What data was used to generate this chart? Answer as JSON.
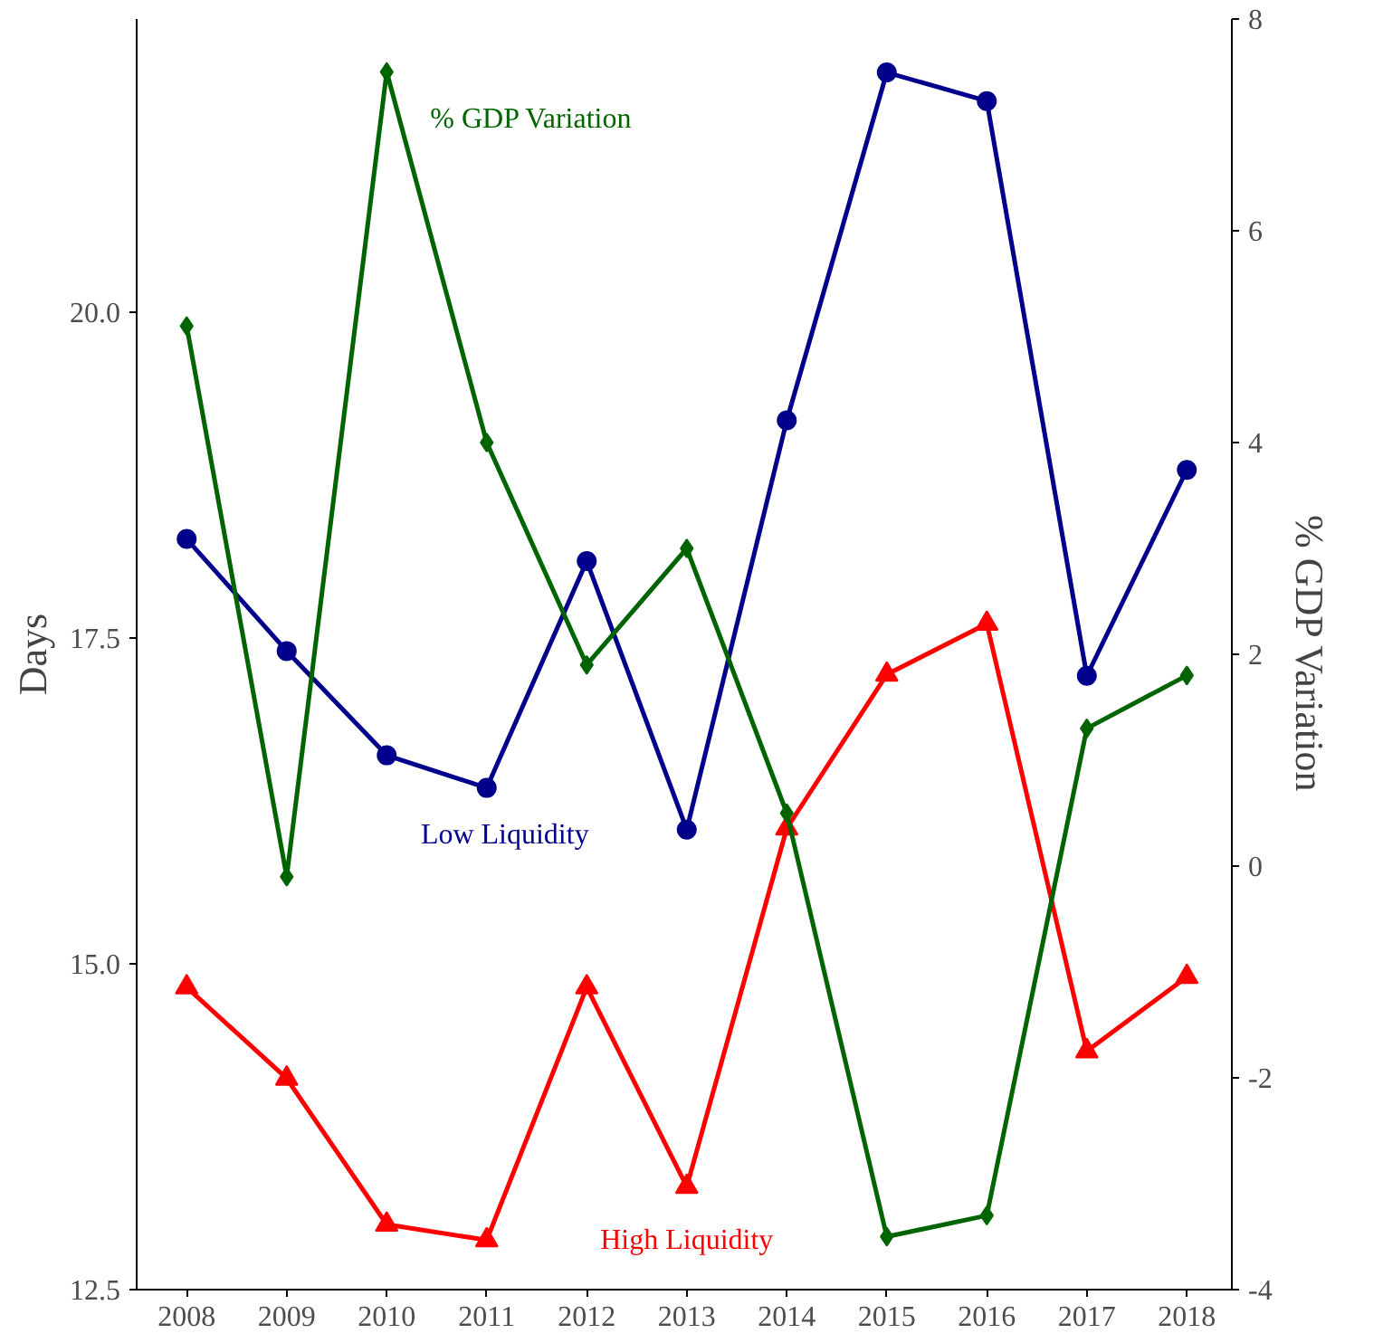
{
  "chart_data": {
    "type": "line",
    "ylabel": "Days",
    "y2label": "% GDP Variation",
    "x": [
      2008,
      2009,
      2010,
      2011,
      2012,
      2013,
      2014,
      2015,
      2016,
      2017,
      2018
    ],
    "xlim": [
      2007.5,
      2018.45
    ],
    "xticks": [
      2008,
      2009,
      2010,
      2011,
      2012,
      2013,
      2014,
      2015,
      2016,
      2017,
      2018
    ],
    "ylim": [
      12.5,
      22.25
    ],
    "yticks": [
      {
        "value": 12.5,
        "label": "12.5"
      },
      {
        "value": 15,
        "label": "15.0"
      },
      {
        "value": 17.5,
        "label": "17.5"
      },
      {
        "value": 20,
        "label": "20.0"
      }
    ],
    "y2lim": [
      -4,
      8
    ],
    "y2ticks": [
      -4,
      -2,
      0,
      2,
      4,
      6,
      8
    ],
    "grid": false,
    "series": [
      {
        "name": "Low Liquidity",
        "color": "#00008b",
        "marker": "circle",
        "values": [
          18.26,
          17.4,
          16.6,
          16.35,
          18.09,
          16.03,
          19.17,
          21.84,
          21.62,
          17.21,
          18.79
        ]
      },
      {
        "name": "High Liquidity",
        "color": "#ff0000",
        "marker": "triangle",
        "values": [
          14.82,
          14.12,
          13.0,
          12.88,
          14.82,
          13.29,
          16.04,
          17.22,
          17.61,
          14.33,
          14.9
        ]
      },
      {
        "name": "% GDP Variation",
        "color": "#006400",
        "marker": "diamond",
        "axis": "y2",
        "values": [
          5.1,
          -0.1,
          7.5,
          4.0,
          1.9,
          3.0,
          0.5,
          -3.5,
          -3.3,
          1.3,
          1.8
        ]
      }
    ]
  }
}
